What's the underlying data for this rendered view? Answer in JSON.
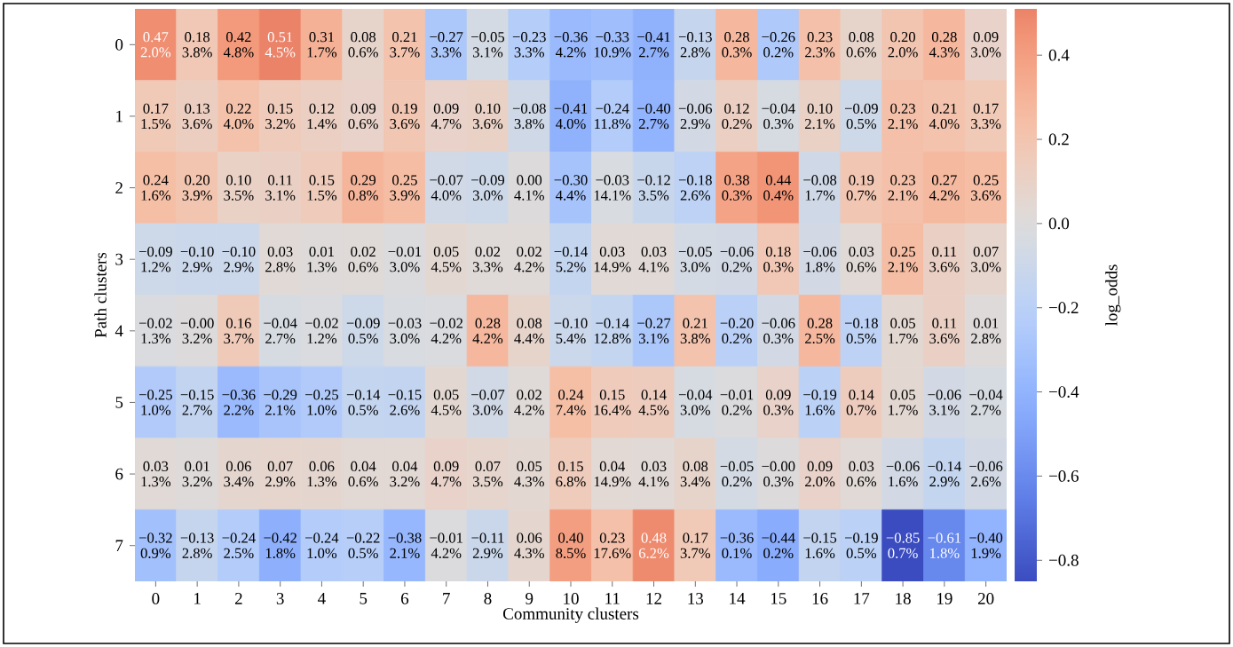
{
  "chart_data": {
    "type": "heatmap",
    "xlabel": "Community clusters",
    "ylabel": "Path clusters",
    "clabel": "log_odds",
    "categories": [
      "0",
      "1",
      "2",
      "3",
      "4",
      "5",
      "6",
      "7",
      "8",
      "9",
      "10",
      "11",
      "12",
      "13",
      "14",
      "15",
      "16",
      "17",
      "18",
      "19",
      "20"
    ],
    "y_categories": [
      "0",
      "1",
      "2",
      "3",
      "4",
      "5",
      "6",
      "7"
    ],
    "cells": [
      [
        0.47,
        0.18,
        0.42,
        0.51,
        0.31,
        0.08,
        0.21,
        -0.27,
        -0.05,
        -0.23,
        -0.36,
        -0.33,
        -0.41,
        -0.13,
        0.28,
        -0.26,
        0.23,
        0.08,
        0.2,
        0.28,
        0.09
      ],
      [
        0.17,
        0.13,
        0.22,
        0.15,
        0.12,
        0.09,
        0.19,
        0.09,
        0.1,
        -0.08,
        -0.41,
        -0.24,
        -0.4,
        -0.06,
        0.12,
        -0.04,
        0.1,
        -0.09,
        0.23,
        0.21,
        0.17
      ],
      [
        0.24,
        0.2,
        0.1,
        0.11,
        0.15,
        0.29,
        0.25,
        -0.07,
        -0.09,
        0.0,
        -0.3,
        -0.03,
        -0.12,
        -0.18,
        0.38,
        0.44,
        -0.08,
        0.19,
        0.23,
        0.27,
        0.25
      ],
      [
        -0.09,
        -0.1,
        -0.1,
        0.03,
        0.01,
        0.02,
        -0.01,
        0.05,
        0.02,
        0.02,
        -0.14,
        0.03,
        0.03,
        -0.05,
        -0.06,
        0.18,
        -0.06,
        0.03,
        0.25,
        0.11,
        0.07
      ],
      [
        -0.02,
        -0.0,
        0.16,
        -0.04,
        -0.02,
        -0.09,
        -0.03,
        -0.02,
        0.28,
        0.08,
        -0.1,
        -0.14,
        -0.27,
        0.21,
        -0.2,
        -0.06,
        0.28,
        -0.18,
        0.05,
        0.11,
        0.01
      ],
      [
        -0.25,
        -0.15,
        -0.36,
        -0.29,
        -0.25,
        -0.14,
        -0.15,
        0.05,
        -0.07,
        0.02,
        0.24,
        0.15,
        0.14,
        -0.04,
        -0.01,
        0.09,
        -0.19,
        0.14,
        0.05,
        -0.06,
        -0.04
      ],
      [
        0.03,
        0.01,
        0.06,
        0.07,
        0.06,
        0.04,
        0.04,
        0.09,
        0.07,
        0.05,
        0.15,
        0.04,
        0.03,
        0.08,
        -0.05,
        -0.0,
        0.09,
        0.03,
        -0.06,
        -0.14,
        -0.06
      ],
      [
        -0.32,
        -0.13,
        -0.24,
        -0.42,
        -0.24,
        -0.22,
        -0.38,
        -0.01,
        -0.11,
        0.06,
        0.4,
        0.23,
        0.48,
        0.17,
        -0.36,
        -0.44,
        -0.15,
        -0.19,
        -0.85,
        -0.61,
        -0.4
      ]
    ],
    "cell_labels": [
      [
        "0.47 2.0%",
        "0.18 3.8%",
        "0.42 4.8%",
        "0.51 4.5%",
        "0.31 1.7%",
        "0.08 0.6%",
        "0.21 3.7%",
        "−0.27 3.3%",
        "−0.05 3.1%",
        "−0.23 3.3%",
        "−0.36 4.2%",
        "−0.33 10.9%",
        "−0.41 2.7%",
        "−0.13 2.8%",
        "0.28 0.3%",
        "−0.26 0.2%",
        "0.23 2.3%",
        "0.08 0.6%",
        "0.20 2.0%",
        "0.28 4.3%",
        "0.09 3.0%"
      ],
      [
        "0.17 1.5%",
        "0.13 3.6%",
        "0.22 4.0%",
        "0.15 3.2%",
        "0.12 1.4%",
        "0.09 0.6%",
        "0.19 3.6%",
        "0.09 4.7%",
        "0.10 3.6%",
        "−0.08 3.8%",
        "−0.41 4.0%",
        "−0.24 11.8%",
        "−0.40 2.7%",
        "−0.06 2.9%",
        "0.12 0.2%",
        "−0.04 0.3%",
        "0.10 2.1%",
        "−0.09 0.5%",
        "0.23 2.1%",
        "0.21 4.0%",
        "0.17 3.3%"
      ],
      [
        "0.24 1.6%",
        "0.20 3.9%",
        "0.10 3.5%",
        "0.11 3.1%",
        "0.15 1.5%",
        "0.29 0.8%",
        "0.25 3.9%",
        "−0.07 4.0%",
        "−0.09 3.0%",
        "0.00 4.1%",
        "−0.30 4.4%",
        "−0.03 14.1%",
        "−0.12 3.5%",
        "−0.18 2.6%",
        "0.38 0.3%",
        "0.44 0.4%",
        "−0.08 1.7%",
        "0.19 0.7%",
        "0.23 2.1%",
        "0.27 4.2%",
        "0.25 3.6%"
      ],
      [
        "−0.09 1.2%",
        "−0.10 2.9%",
        "−0.10 2.9%",
        "0.03 2.8%",
        "0.01 1.3%",
        "0.02 0.6%",
        "−0.01 3.0%",
        "0.05 4.5%",
        "0.02 3.3%",
        "0.02 4.2%",
        "−0.14 5.2%",
        "0.03 14.9%",
        "0.03 4.1%",
        "−0.05 3.0%",
        "−0.06 0.2%",
        "0.18 0.3%",
        "−0.06 1.8%",
        "0.03 0.6%",
        "0.25 2.1%",
        "0.11 3.6%",
        "0.07 3.0%"
      ],
      [
        "−0.02 1.3%",
        "−0.00 3.2%",
        "0.16 3.7%",
        "−0.04 2.7%",
        "−0.02 1.2%",
        "−0.09 0.5%",
        "−0.03 3.0%",
        "−0.02 4.2%",
        "0.28 4.2%",
        "0.08 4.4%",
        "−0.10 5.4%",
        "−0.14 12.8%",
        "−0.27 3.1%",
        "0.21 3.8%",
        "−0.20 0.2%",
        "−0.06 0.3%",
        "0.28 2.5%",
        "−0.18 0.5%",
        "0.05 1.7%",
        "0.11 3.6%",
        "0.01 2.8%"
      ],
      [
        "−0.25 1.0%",
        "−0.15 2.7%",
        "−0.36 2.2%",
        "−0.29 2.1%",
        "−0.25 1.0%",
        "−0.14 0.5%",
        "−0.15 2.6%",
        "0.05 4.5%",
        "−0.07 3.0%",
        "0.02 4.2%",
        "0.24 7.4%",
        "0.15 16.4%",
        "0.14 4.5%",
        "−0.04 3.0%",
        "−0.01 0.2%",
        "0.09 0.3%",
        "−0.19 1.6%",
        "0.14 0.7%",
        "0.05 1.7%",
        "−0.06 3.1%",
        "−0.04 2.7%"
      ],
      [
        "0.03 1.3%",
        "0.01 3.2%",
        "0.06 3.4%",
        "0.07 2.9%",
        "0.06 1.3%",
        "0.04 0.6%",
        "0.04 3.2%",
        "0.09 4.7%",
        "0.07 3.5%",
        "0.05 4.3%",
        "0.15 6.8%",
        "0.04 14.9%",
        "0.03 4.1%",
        "0.08 3.4%",
        "−0.05 0.2%",
        "−0.00 0.3%",
        "0.09 2.0%",
        "0.03 0.6%",
        "−0.06 1.6%",
        "−0.14 2.9%",
        "−0.06 2.6%"
      ],
      [
        "−0.32 0.9%",
        "−0.13 2.8%",
        "−0.24 2.5%",
        "−0.42 1.8%",
        "−0.24 1.0%",
        "−0.22 0.5%",
        "−0.38 2.1%",
        "−0.01 4.2%",
        "−0.11 2.9%",
        "0.06 4.3%",
        "0.40 8.5%",
        "0.23 17.6%",
        "0.48 6.2%",
        "0.17 3.7%",
        "−0.36 0.1%",
        "−0.44 0.2%",
        "−0.15 1.6%",
        "−0.19 0.5%",
        "−0.85 0.7%",
        "−0.61 1.8%",
        "−0.40 1.9%"
      ]
    ],
    "clim": [
      -0.85,
      0.51
    ],
    "cticks": [
      {
        "value": -0.8,
        "label": "−0.8"
      },
      {
        "value": -0.6,
        "label": "−0.6"
      },
      {
        "value": -0.4,
        "label": "−0.4"
      },
      {
        "value": -0.2,
        "label": "−0.2"
      },
      {
        "value": 0,
        "label": "0.0"
      },
      {
        "value": 0.2,
        "label": "0.2"
      },
      {
        "value": 0.4,
        "label": "0.4"
      }
    ]
  }
}
